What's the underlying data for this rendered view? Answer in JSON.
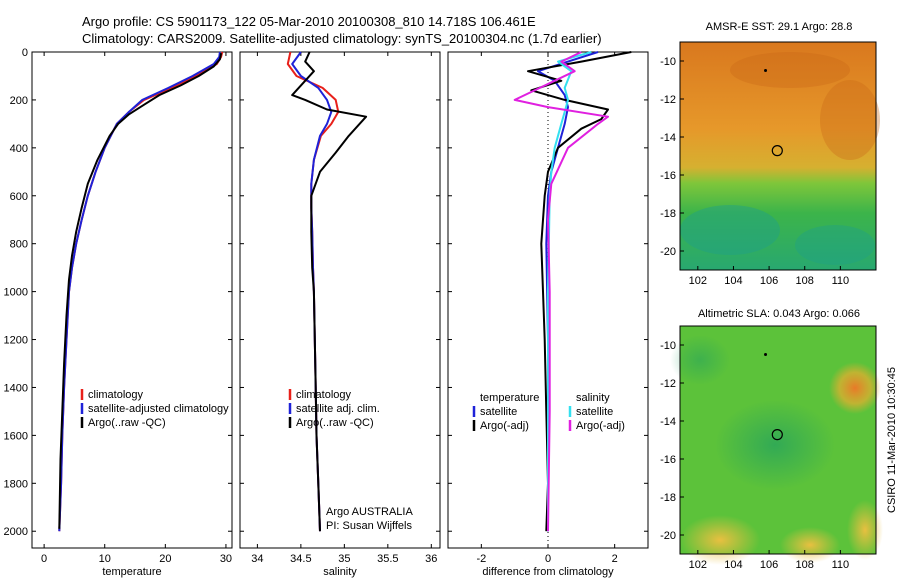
{
  "header": {
    "line1": "Argo profile: CS 5901173_122 05-Mar-2010 20100308_810 14.718S 106.461E",
    "line2": "Climatology: CARS2009. Satellite-adjusted climatology: synTS_20100304.nc (1.7d earlier)"
  },
  "side_label": "CSIRO 11-Mar-2010 10:30:45",
  "colors": {
    "climatology": "#e8201a",
    "satellite": "#1e22d8",
    "argo": "#000000",
    "satellite_salinity": "#33e0f0",
    "argo_salinity_diff": "#e020e0"
  },
  "chart_data": [
    {
      "id": "temperature",
      "type": "line",
      "xlabel": "temperature",
      "ylabel": "",
      "xlim": [
        -2,
        31
      ],
      "ylim": [
        2070,
        0
      ],
      "xticks": [
        0,
        10,
        20,
        30
      ],
      "yticks": [
        0,
        200,
        400,
        600,
        800,
        1000,
        1200,
        1400,
        1600,
        1800,
        2000
      ],
      "series": [
        {
          "name": "climatology",
          "color": "#e8201a",
          "x": [
            29.4,
            29.2,
            28.5,
            25.0,
            21.0,
            16.5,
            14.0,
            12.0,
            10.0,
            8.5,
            7.2,
            6.2,
            5.3,
            4.6,
            4.1,
            3.7,
            3.3,
            3.0,
            2.8,
            2.5
          ],
          "y": [
            0,
            20,
            50,
            100,
            150,
            200,
            250,
            300,
            400,
            500,
            600,
            700,
            800,
            900,
            1000,
            1200,
            1400,
            1600,
            1800,
            2000
          ]
        },
        {
          "name": "satellite-adjusted climatology",
          "color": "#1e22d8",
          "x": [
            29.0,
            28.9,
            28.0,
            24.5,
            20.5,
            16.2,
            14.0,
            12.0,
            10.0,
            8.5,
            7.2,
            6.2,
            5.3,
            4.6,
            4.1,
            3.7,
            3.3,
            3.0,
            2.8,
            2.5
          ],
          "y": [
            0,
            20,
            50,
            100,
            150,
            200,
            250,
            300,
            400,
            500,
            600,
            700,
            800,
            900,
            1000,
            1200,
            1400,
            1600,
            1800,
            2000
          ]
        },
        {
          "name": "Argo(..raw -QC)",
          "color": "#000000",
          "x": [
            29.2,
            29.0,
            28.0,
            25.5,
            22.5,
            19.0,
            16.5,
            14.0,
            12.2,
            10.8,
            8.8,
            7.2,
            6.2,
            5.3,
            4.6,
            4.1,
            3.7,
            3.3,
            3.0,
            2.7,
            2.5
          ],
          "y": [
            5,
            30,
            60,
            100,
            140,
            180,
            220,
            260,
            300,
            350,
            450,
            550,
            650,
            750,
            850,
            950,
            1100,
            1300,
            1500,
            1700,
            1990
          ]
        }
      ],
      "legend": [
        "climatology",
        "satellite-adjusted climatology",
        "Argo(..raw -QC)"
      ]
    },
    {
      "id": "salinity",
      "type": "line",
      "xlabel": "salinity",
      "ylabel": "",
      "xlim": [
        33.8,
        36.1
      ],
      "ylim": [
        2070,
        0
      ],
      "xticks": [
        34,
        34.5,
        35,
        35.5,
        36
      ],
      "xticklabels": [
        "34",
        "34.5",
        "35",
        "35.5",
        "36"
      ],
      "series": [
        {
          "name": "climatology",
          "color": "#e8201a",
          "x": [
            34.38,
            34.35,
            34.45,
            34.75,
            34.9,
            34.93,
            34.85,
            34.73,
            34.65,
            34.62,
            34.62,
            34.63,
            34.64,
            34.65,
            34.66,
            34.67,
            34.68,
            34.7,
            34.72
          ],
          "y": [
            0,
            50,
            100,
            150,
            200,
            250,
            300,
            350,
            450,
            550,
            650,
            750,
            900,
            1000,
            1200,
            1400,
            1600,
            1800,
            2000
          ]
        },
        {
          "name": "satellite adj. clim.",
          "color": "#1e22d8",
          "x": [
            34.5,
            34.4,
            34.5,
            34.7,
            34.8,
            34.85,
            34.8,
            34.72,
            34.65,
            34.62,
            34.62,
            34.63,
            34.64,
            34.65,
            34.66,
            34.67,
            34.68,
            34.7,
            34.72
          ],
          "y": [
            0,
            50,
            100,
            150,
            200,
            250,
            300,
            350,
            450,
            550,
            650,
            750,
            900,
            1000,
            1200,
            1400,
            1600,
            1800,
            2000
          ]
        },
        {
          "name": "Argo(..raw -QC)",
          "color": "#000000",
          "x": [
            34.6,
            34.55,
            34.65,
            34.4,
            34.55,
            34.8,
            35.25,
            35.05,
            34.9,
            34.72,
            34.62,
            34.62,
            34.63,
            34.65,
            34.66,
            34.67,
            34.68,
            34.7,
            34.72
          ],
          "y": [
            0,
            40,
            80,
            180,
            200,
            240,
            270,
            350,
            420,
            500,
            600,
            750,
            900,
            1000,
            1200,
            1400,
            1600,
            1800,
            2000
          ]
        }
      ],
      "legend": [
        "climatology",
        "satellite adj. clim.",
        "Argo(..raw -QC)"
      ],
      "annotation": [
        "Argo AUSTRALIA",
        "PI: Susan Wijffels"
      ]
    },
    {
      "id": "difference",
      "type": "line",
      "xlabel": "difference from climatology",
      "ylabel": "",
      "xlim": [
        -3,
        3
      ],
      "ylim": [
        2070,
        0
      ],
      "xticks": [
        -2,
        0,
        2
      ],
      "series": [
        {
          "name": "temperature satellite",
          "color": "#1e22d8",
          "x": [
            1.5,
            0.6,
            -0.3,
            0.2,
            0.5,
            0.6,
            0.5,
            0.3,
            0.1,
            0.0,
            -0.05,
            0.0,
            0.0
          ],
          "y": [
            0,
            40,
            80,
            120,
            180,
            230,
            300,
            400,
            500,
            600,
            800,
            1200,
            2000
          ]
        },
        {
          "name": "temperature Argo(-adj)",
          "color": "#000000",
          "x": [
            2.5,
            1.0,
            -0.6,
            0.4,
            -0.5,
            0.5,
            1.8,
            1.6,
            1.0,
            0.3,
            0.0,
            -0.1,
            -0.2,
            -0.15,
            -0.1,
            -0.05,
            0.0,
            -0.05
          ],
          "y": [
            0,
            40,
            80,
            120,
            160,
            200,
            240,
            280,
            320,
            400,
            500,
            600,
            800,
            1000,
            1200,
            1500,
            1800,
            2000
          ]
        },
        {
          "name": "salinity satellite",
          "color": "#33e0f0",
          "x": [
            1.3,
            0.3,
            0.7,
            0.5,
            0.6,
            0.5,
            0.4,
            0.2,
            0.1,
            0.05,
            0.0,
            0.0
          ],
          "y": [
            0,
            40,
            80,
            150,
            200,
            250,
            300,
            400,
            500,
            600,
            1000,
            2000
          ]
        },
        {
          "name": "salinity Argo(-adj)",
          "color": "#e020e0",
          "x": [
            1.0,
            0.4,
            0.8,
            -1.0,
            0.0,
            1.8,
            1.5,
            0.6,
            0.1,
            0.0,
            0.05,
            0.05,
            0.0
          ],
          "y": [
            0,
            40,
            80,
            200,
            230,
            270,
            300,
            400,
            550,
            700,
            1000,
            1500,
            2000
          ]
        }
      ],
      "legend_groups": [
        {
          "heading": "temperature",
          "items": [
            "satellite",
            "Argo(-adj)"
          ]
        },
        {
          "heading": "salinity",
          "items": [
            "satellite",
            "Argo(-adj)"
          ]
        }
      ]
    }
  ],
  "maps": [
    {
      "id": "sst-map",
      "title": "AMSR-E SST: 29.1  Argo: 28.8",
      "xlim": [
        101,
        112
      ],
      "ylim": [
        -21,
        -9
      ],
      "xticks": [
        102,
        104,
        106,
        108,
        110
      ],
      "yticks": [
        -10,
        -12,
        -14,
        -16,
        -18,
        -20
      ],
      "argo_position": {
        "lon": 106.461,
        "lat": -14.718
      }
    },
    {
      "id": "sla-map",
      "title": "Altimetric SLA: 0.043  Argo: 0.066",
      "xlim": [
        101,
        112
      ],
      "ylim": [
        -21,
        -9
      ],
      "xticks": [
        102,
        104,
        106,
        108,
        110
      ],
      "yticks": [
        -10,
        -12,
        -14,
        -16,
        -18,
        -20
      ],
      "argo_position": {
        "lon": 106.461,
        "lat": -14.718
      }
    }
  ]
}
